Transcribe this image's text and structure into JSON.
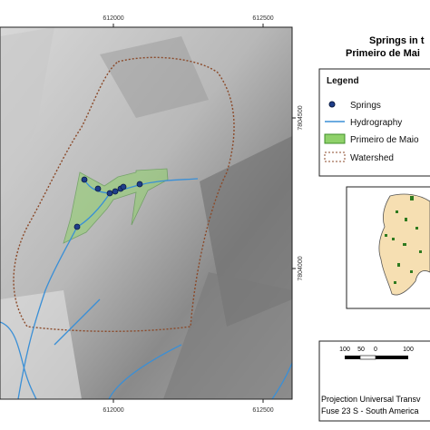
{
  "map": {
    "top_coords": [
      "612000",
      "612500"
    ],
    "bottom_coords": [
      "612000",
      "612500"
    ],
    "side_coords": [
      "7804500",
      "7804000"
    ]
  },
  "title": {
    "line1": "Springs in t",
    "line2": "Primeiro de Mai"
  },
  "legend": {
    "heading": "Legend",
    "items": [
      "Springs",
      "Hydrography",
      "Primeiro de Maio",
      "Watershed"
    ]
  },
  "scale": {
    "labels": [
      "100",
      "50",
      "0",
      "100"
    ]
  },
  "projection": {
    "line1": "Projection Universal Transv",
    "line2": "Fuse 23 S - South America"
  }
}
